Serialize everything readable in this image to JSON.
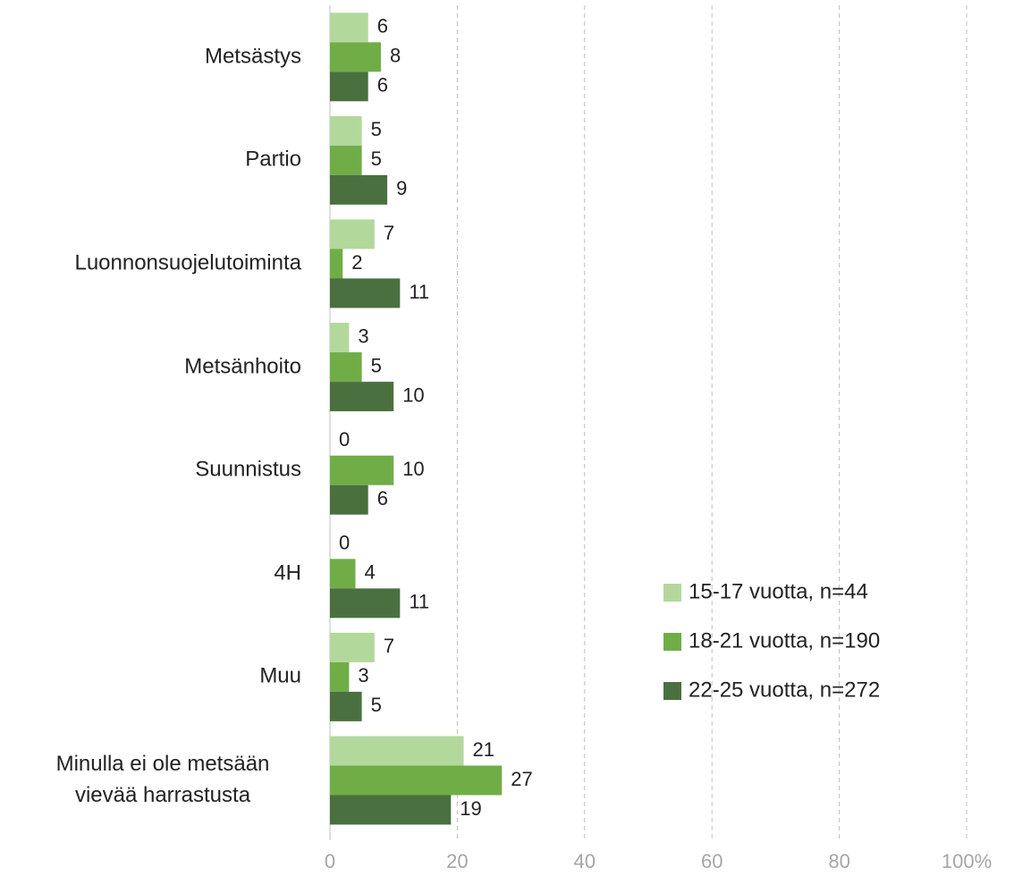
{
  "chart_data": {
    "type": "bar",
    "orientation": "horizontal",
    "categories": [
      "Metsästys",
      "Partio",
      "Luonnonsuojelutoiminta",
      "Metsänhoito",
      "Suunnistus",
      "4H",
      "Muu",
      "Minulla ei ole metsään vievää harrastusta"
    ],
    "series": [
      {
        "name": "15-17 vuotta, n=44",
        "color": "#b3d89c",
        "values": [
          6,
          5,
          7,
          3,
          0,
          0,
          7,
          21
        ]
      },
      {
        "name": "18-21 vuotta, n=190",
        "color": "#70ad47",
        "values": [
          8,
          5,
          2,
          5,
          10,
          4,
          3,
          27
        ]
      },
      {
        "name": "22-25 vuotta, n=272",
        "color": "#4a7040",
        "values": [
          6,
          9,
          11,
          10,
          6,
          11,
          5,
          19
        ]
      }
    ],
    "xlim": [
      0,
      100
    ],
    "xticks": [
      0,
      20,
      40,
      60,
      80,
      {
        "value": 100,
        "label": "100%"
      }
    ],
    "grid": true,
    "legend": "right"
  }
}
